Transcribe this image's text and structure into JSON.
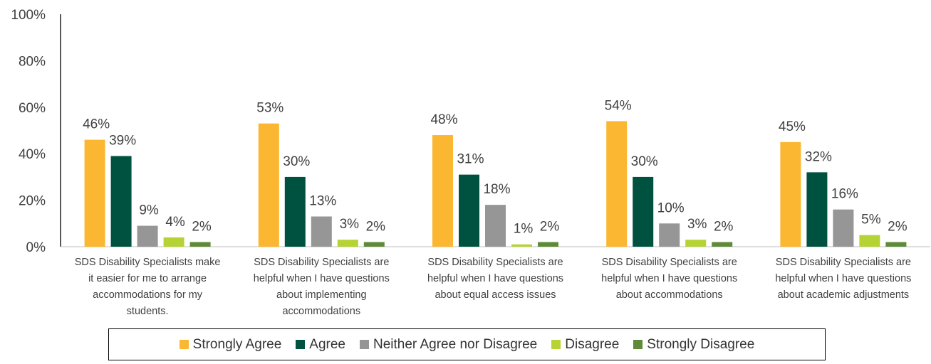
{
  "chart_data": {
    "type": "bar",
    "categories": [
      "SDS Disability Specialists make it easier for me to arrange accommodations for my students.",
      "SDS Disability Specialists are helpful when I have questions about implementing accommodations",
      "SDS Disability Specialists are helpful when I have questions about equal access issues",
      "SDS Disability Specialists are helpful when I have questions about accommodations",
      "SDS Disability Specialists are helpful when I have questions about academic adjustments"
    ],
    "category_lines": [
      [
        "SDS Disability Specialists make",
        "it easier for me to arrange",
        "accommodations for my",
        "students."
      ],
      [
        "SDS Disability Specialists are",
        "helpful when I have questions",
        "about implementing",
        "accommodations"
      ],
      [
        "SDS Disability Specialists are",
        "helpful when I have questions",
        "about equal access issues"
      ],
      [
        "SDS Disability Specialists are",
        "helpful when I have questions",
        "about accommodations"
      ],
      [
        "SDS Disability Specialists are",
        "helpful when I have questions",
        "about academic adjustments"
      ]
    ],
    "series": [
      {
        "name": "Strongly Agree",
        "color": "#FBB731",
        "values": [
          46,
          53,
          48,
          54,
          45
        ]
      },
      {
        "name": "Agree",
        "color": "#005240",
        "values": [
          39,
          30,
          31,
          30,
          32
        ]
      },
      {
        "name": "Neither Agree nor Disagree",
        "color": "#969696",
        "values": [
          9,
          13,
          18,
          10,
          16
        ]
      },
      {
        "name": "Disagree",
        "color": "#B5D334",
        "values": [
          4,
          3,
          1,
          3,
          5
        ]
      },
      {
        "name": "Strongly Disagree",
        "color": "#5F8A3A",
        "values": [
          2,
          2,
          2,
          2,
          2
        ]
      }
    ],
    "data_labels": [
      [
        "46%",
        "53%",
        "48%",
        "54%",
        "45%"
      ],
      [
        "39%",
        "30%",
        "31%",
        "30%",
        "32%"
      ],
      [
        "9%",
        "13%",
        "18%",
        "10%",
        "16%"
      ],
      [
        "4%",
        "3%",
        "1%",
        "3%",
        "5%"
      ],
      [
        "2%",
        "2%",
        "2%",
        "2%",
        "2%"
      ]
    ],
    "y_ticks": [
      "0%",
      "20%",
      "40%",
      "60%",
      "80%",
      "100%"
    ],
    "ylim": [
      0,
      100
    ],
    "title": "",
    "xlabel": "",
    "ylabel": "",
    "grid": false,
    "legend_position": "bottom"
  }
}
